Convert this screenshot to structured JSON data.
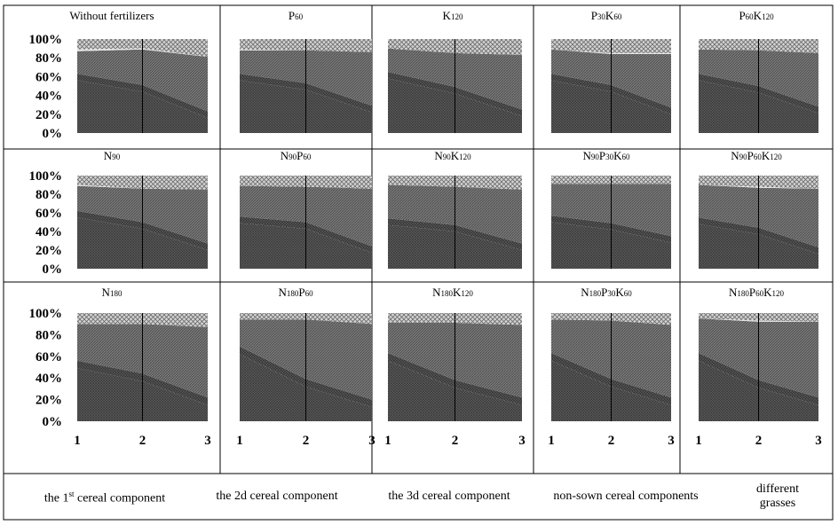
{
  "legend": {
    "items": [
      {
        "pre": "the 1",
        "sup": "st",
        "post": " cereal component"
      },
      {
        "pre": "the 2d cereal component",
        "sup": "",
        "post": ""
      },
      {
        "pre": "the 3d cereal component",
        "sup": "",
        "post": ""
      },
      {
        "pre": "non-sown cereal components",
        "sup": "",
        "post": ""
      },
      {
        "pre": "different grasses",
        "sup": "",
        "post": ""
      }
    ]
  },
  "chart_data": [
    {
      "type": "area",
      "stacked": "percent",
      "title": "Without fertilizers",
      "x": [
        1,
        2,
        3
      ],
      "y_ticks": [
        "100%",
        "80%",
        "60%",
        "40%",
        "20%",
        "0%"
      ],
      "series": [
        {
          "values": [
            56,
            44,
            16
          ]
        },
        {
          "values": [
            7,
            7,
            7
          ]
        },
        {
          "values": [
            24,
            38,
            58
          ]
        },
        {
          "values": [
            2,
            1,
            0
          ]
        },
        {
          "values": [
            11,
            10,
            19
          ]
        }
      ]
    },
    {
      "type": "area",
      "stacked": "percent",
      "title_parts": [
        [
          "P",
          ""
        ],
        [
          "60",
          "sub"
        ]
      ],
      "x": [
        1,
        2,
        3
      ],
      "y_ticks": [],
      "series": [
        {
          "values": [
            56,
            46,
            22
          ]
        },
        {
          "values": [
            7,
            7,
            7
          ]
        },
        {
          "values": [
            25,
            35,
            57
          ]
        },
        {
          "values": [
            1,
            0,
            0
          ]
        },
        {
          "values": [
            11,
            12,
            14
          ]
        }
      ]
    },
    {
      "type": "area",
      "stacked": "percent",
      "title_parts": [
        [
          "K",
          ""
        ],
        [
          "120",
          "sub"
        ]
      ],
      "x": [
        1,
        2,
        3
      ],
      "y_ticks": [],
      "series": [
        {
          "values": [
            58,
            42,
            18
          ]
        },
        {
          "values": [
            7,
            7,
            7
          ]
        },
        {
          "values": [
            25,
            36,
            58
          ]
        },
        {
          "values": [
            0,
            0,
            0
          ]
        },
        {
          "values": [
            10,
            15,
            17
          ]
        }
      ]
    },
    {
      "type": "area",
      "stacked": "percent",
      "title_parts": [
        [
          "P",
          ""
        ],
        [
          "30",
          "sub"
        ],
        [
          "K",
          ""
        ],
        [
          "60",
          "sub"
        ]
      ],
      "x": [
        1,
        2,
        3
      ],
      "y_ticks": [],
      "series": [
        {
          "values": [
            56,
            44,
            20
          ]
        },
        {
          "values": [
            7,
            7,
            7
          ]
        },
        {
          "values": [
            26,
            33,
            57
          ]
        },
        {
          "values": [
            0,
            1,
            1
          ]
        },
        {
          "values": [
            11,
            15,
            15
          ]
        }
      ]
    },
    {
      "type": "area",
      "stacked": "percent",
      "title_parts": [
        [
          "P",
          ""
        ],
        [
          "60",
          "sub"
        ],
        [
          "K",
          ""
        ],
        [
          "120",
          "sub"
        ]
      ],
      "x": [
        1,
        2,
        3
      ],
      "y_ticks": [],
      "series": [
        {
          "values": [
            56,
            43,
            21
          ]
        },
        {
          "values": [
            7,
            7,
            7
          ]
        },
        {
          "values": [
            26,
            38,
            57
          ]
        },
        {
          "values": [
            0,
            0,
            0
          ]
        },
        {
          "values": [
            11,
            12,
            15
          ]
        }
      ]
    },
    {
      "type": "area",
      "stacked": "percent",
      "title_parts": [
        [
          "N",
          ""
        ],
        [
          "90",
          "sub"
        ]
      ],
      "x": [
        1,
        2,
        3
      ],
      "y_ticks": [
        "100%",
        "80%",
        "60%",
        "40%",
        "20%",
        "0%"
      ],
      "series": [
        {
          "values": [
            55,
            43,
            20
          ]
        },
        {
          "values": [
            7,
            7,
            7
          ]
        },
        {
          "values": [
            27,
            36,
            58
          ]
        },
        {
          "values": [
            1,
            0,
            0
          ]
        },
        {
          "values": [
            10,
            14,
            15
          ]
        }
      ]
    },
    {
      "type": "area",
      "stacked": "percent",
      "title_parts": [
        [
          "N",
          ""
        ],
        [
          "90",
          "sub"
        ],
        [
          "P",
          ""
        ],
        [
          "60",
          "sub"
        ]
      ],
      "x": [
        1,
        2,
        3
      ],
      "y_ticks": [],
      "series": [
        {
          "values": [
            49,
            43,
            17
          ]
        },
        {
          "values": [
            7,
            7,
            7
          ]
        },
        {
          "values": [
            33,
            38,
            62
          ]
        },
        {
          "values": [
            0,
            0,
            0
          ]
        },
        {
          "values": [
            11,
            12,
            14
          ]
        }
      ]
    },
    {
      "type": "area",
      "stacked": "percent",
      "title_parts": [
        [
          "N",
          ""
        ],
        [
          "90",
          "sub"
        ],
        [
          "K",
          ""
        ],
        [
          "120",
          "sub"
        ]
      ],
      "x": [
        1,
        2,
        3
      ],
      "y_ticks": [],
      "series": [
        {
          "values": [
            47,
            40,
            20
          ]
        },
        {
          "values": [
            7,
            7,
            7
          ]
        },
        {
          "values": [
            36,
            41,
            58
          ]
        },
        {
          "values": [
            0,
            0,
            0
          ]
        },
        {
          "values": [
            10,
            12,
            15
          ]
        }
      ]
    },
    {
      "type": "area",
      "stacked": "percent",
      "title_parts": [
        [
          "N",
          ""
        ],
        [
          "90",
          "sub"
        ],
        [
          "P",
          ""
        ],
        [
          "30",
          "sub"
        ],
        [
          "K",
          ""
        ],
        [
          "60",
          "sub"
        ]
      ],
      "x": [
        1,
        2,
        3
      ],
      "y_ticks": [],
      "series": [
        {
          "values": [
            50,
            42,
            28
          ]
        },
        {
          "values": [
            7,
            7,
            7
          ]
        },
        {
          "values": [
            34,
            42,
            56
          ]
        },
        {
          "values": [
            0,
            0,
            0
          ]
        },
        {
          "values": [
            9,
            9,
            9
          ]
        }
      ]
    },
    {
      "type": "area",
      "stacked": "percent",
      "title_parts": [
        [
          "N",
          ""
        ],
        [
          "90",
          "sub"
        ],
        [
          "P",
          ""
        ],
        [
          "60",
          "sub"
        ],
        [
          "K",
          ""
        ],
        [
          "120",
          "sub"
        ]
      ],
      "x": [
        1,
        2,
        3
      ],
      "y_ticks": [],
      "series": [
        {
          "values": [
            48,
            37,
            16
          ]
        },
        {
          "values": [
            7,
            7,
            7
          ]
        },
        {
          "values": [
            35,
            43,
            63
          ]
        },
        {
          "values": [
            0,
            1,
            0
          ]
        },
        {
          "values": [
            10,
            12,
            14
          ]
        }
      ]
    },
    {
      "type": "area",
      "stacked": "percent",
      "title_parts": [
        [
          "N",
          ""
        ],
        [
          "180",
          "sub"
        ]
      ],
      "x": [
        1,
        2,
        3
      ],
      "y_ticks": [
        "100%",
        "80%",
        "60%",
        "40%",
        "20%",
        "0%"
      ],
      "series": [
        {
          "values": [
            49,
            37,
            15
          ]
        },
        {
          "values": [
            7,
            7,
            7
          ]
        },
        {
          "values": [
            34,
            46,
            65
          ]
        },
        {
          "values": [
            0,
            0,
            0
          ]
        },
        {
          "values": [
            10,
            10,
            13
          ]
        }
      ]
    },
    {
      "type": "area",
      "stacked": "percent",
      "title_parts": [
        [
          "N",
          ""
        ],
        [
          "180",
          "sub"
        ],
        [
          "P",
          ""
        ],
        [
          "60",
          "sub"
        ]
      ],
      "x": [
        1,
        2,
        3
      ],
      "y_ticks": [],
      "series": [
        {
          "values": [
            62,
            32,
            13
          ]
        },
        {
          "values": [
            7,
            7,
            7
          ]
        },
        {
          "values": [
            25,
            55,
            70
          ]
        },
        {
          "values": [
            0,
            0,
            0
          ]
        },
        {
          "values": [
            6,
            6,
            10
          ]
        }
      ]
    },
    {
      "type": "area",
      "stacked": "percent",
      "title_parts": [
        [
          "N",
          ""
        ],
        [
          "180",
          "sub"
        ],
        [
          "K",
          ""
        ],
        [
          "120",
          "sub"
        ]
      ],
      "x": [
        1,
        2,
        3
      ],
      "y_ticks": [],
      "series": [
        {
          "values": [
            56,
            31,
            15
          ]
        },
        {
          "values": [
            7,
            7,
            7
          ]
        },
        {
          "values": [
            28,
            53,
            67
          ]
        },
        {
          "values": [
            0,
            0,
            0
          ]
        },
        {
          "values": [
            9,
            9,
            11
          ]
        }
      ]
    },
    {
      "type": "area",
      "stacked": "percent",
      "title_parts": [
        [
          "N",
          ""
        ],
        [
          "180",
          "sub"
        ],
        [
          "P",
          ""
        ],
        [
          "30",
          "sub"
        ],
        [
          "K",
          ""
        ],
        [
          "60",
          "sub"
        ]
      ],
      "x": [
        1,
        2,
        3
      ],
      "y_ticks": [],
      "series": [
        {
          "values": [
            56,
            32,
            15
          ]
        },
        {
          "values": [
            7,
            7,
            7
          ]
        },
        {
          "values": [
            31,
            54,
            67
          ]
        },
        {
          "values": [
            0,
            0,
            0
          ]
        },
        {
          "values": [
            6,
            7,
            11
          ]
        }
      ]
    },
    {
      "type": "area",
      "stacked": "percent",
      "title_parts": [
        [
          "N",
          ""
        ],
        [
          "180",
          "sub"
        ],
        [
          "P",
          ""
        ],
        [
          "60",
          "sub"
        ],
        [
          "K",
          ""
        ],
        [
          "120",
          "sub"
        ]
      ],
      "x": [
        1,
        2,
        3
      ],
      "y_ticks": [],
      "series": [
        {
          "values": [
            56,
            31,
            15
          ]
        },
        {
          "values": [
            7,
            7,
            7
          ]
        },
        {
          "values": [
            32,
            54,
            70
          ]
        },
        {
          "values": [
            0,
            1,
            0
          ]
        },
        {
          "values": [
            5,
            7,
            8
          ]
        }
      ]
    }
  ]
}
